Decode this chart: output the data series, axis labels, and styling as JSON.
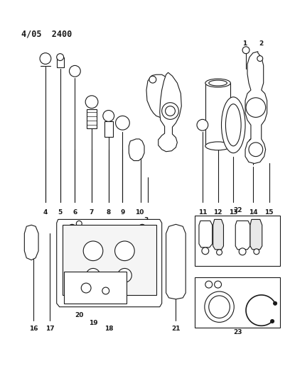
{
  "title": "4/05  2400",
  "background_color": "#ffffff",
  "line_color": "#1a1a1a",
  "figsize": [
    4.08,
    5.33
  ],
  "dpi": 100
}
